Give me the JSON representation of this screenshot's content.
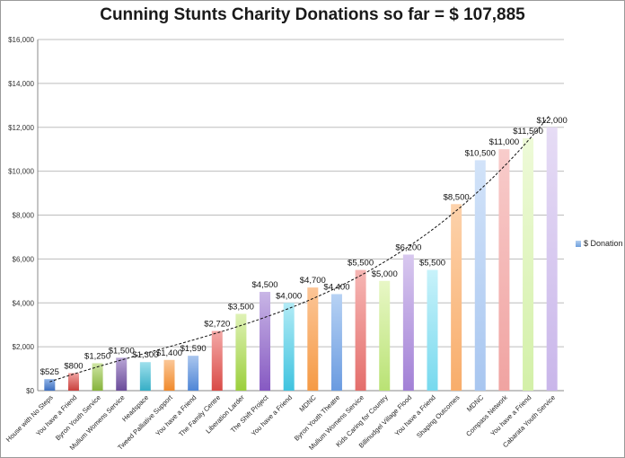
{
  "chart_data": {
    "type": "bar",
    "title": "Cunning Stunts Charity Donations so far = $  107,885",
    "xlabel": "",
    "ylabel": "",
    "ylim": [
      0,
      16000
    ],
    "yticks": [
      "$0",
      "$2,000",
      "$4,000",
      "$6,000",
      "$8,000",
      "$10,000",
      "$12,000",
      "$14,000",
      "$16,000"
    ],
    "grid": true,
    "legend_position": "right",
    "trendline": "polynomial, dashed",
    "categories": [
      "House with No Steps",
      "You have a Friend",
      "Byron Youth Service",
      "Mullum Womens Service",
      "Headspace",
      "Tweed Palliative Support",
      "You have a Friend",
      "The Family Centre",
      "Liberation Larder",
      "The Shift Project",
      "You have a Friend",
      "MDNC",
      "Byron Youth Theatre",
      "Mullum Womens Service",
      "Kids Caring for Country",
      "Billinudgel Village Flood",
      "You have a Friend",
      "Shaping Outcomes",
      "MDNC",
      "Compass Network",
      "You have a Friend",
      "Cabarata Youth Service"
    ],
    "series": [
      {
        "name": "$ Donation",
        "values": [
          525,
          800,
          1250,
          1500,
          1300,
          1400,
          1590,
          2720,
          3500,
          4500,
          4000,
          4700,
          4400,
          5500,
          5000,
          6200,
          5500,
          8500,
          10500,
          11000,
          11500,
          12000
        ],
        "labels": [
          "$525",
          "$800",
          "$1,250",
          "$1,500",
          "$1,300",
          "$1,400",
          "$1,590",
          "$2,720",
          "$3,500",
          "$4,500",
          "$4,000",
          "$4,700",
          "$4,400",
          "$5,500",
          "$5,000",
          "$6,200",
          "$5,500",
          "$8,500",
          "$10,500",
          "$11,000",
          "$11,500",
          "$12,000"
        ]
      }
    ],
    "bar_colors": [
      [
        "#8fb3e6",
        "#3d6fc0"
      ],
      [
        "#f0a4a2",
        "#c9403d"
      ],
      [
        "#cfe6a4",
        "#86b33c"
      ],
      [
        "#b9a6d6",
        "#6b4c9a"
      ],
      [
        "#9fe0ec",
        "#36aec6"
      ],
      [
        "#fbc797",
        "#f08a2c"
      ],
      [
        "#aac6ee",
        "#4f86d6"
      ],
      [
        "#f4a9a7",
        "#d94b47"
      ],
      [
        "#dff2b6",
        "#9bcf3c"
      ],
      [
        "#c9b6e6",
        "#8659c2"
      ],
      [
        "#b2ebf6",
        "#3fc3df"
      ],
      [
        "#fcc596",
        "#f59a45"
      ],
      [
        "#b7d2f4",
        "#6a9be0"
      ],
      [
        "#f6b6b4",
        "#e46e6b"
      ],
      [
        "#e8f7c6",
        "#b9e274"
      ],
      [
        "#d8c8ef",
        "#a280d6"
      ],
      [
        "#c8f2fa",
        "#77d9ee"
      ],
      [
        "#fdd2ab",
        "#f8ad6b"
      ],
      [
        "#d2e3f9",
        "#a8c6f0"
      ],
      [
        "#f8cccb",
        "#f0a3a1"
      ],
      [
        "#eefad8",
        "#d3f0a8"
      ],
      [
        "#e6dcf5",
        "#c9b6ea"
      ]
    ]
  }
}
